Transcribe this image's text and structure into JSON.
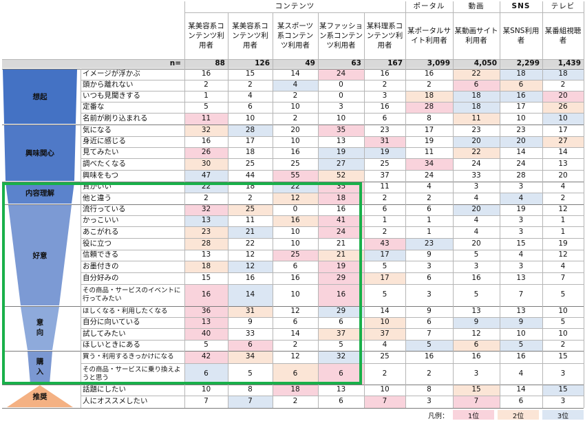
{
  "group_headers": [
    "コンテンツ",
    "ポータル",
    "動画",
    "SNS",
    "テレビ"
  ],
  "columns": [
    "某美容系コンテンツ利用者",
    "某美容系コンテンツ利用者",
    "某スポーツ系コンテンツ利用者",
    "某ファッション系コンテンツ利用者",
    "某料理系コンテンツ利用者",
    "某ポータルサイト利用者",
    "某動画サイト利用者",
    "某SNS利用者",
    "某番組視聴者"
  ],
  "n_label": "n=",
  "n_values": [
    "88",
    "126",
    "49",
    "63",
    "167",
    "3,099",
    "4,050",
    "2,299",
    "1,439"
  ],
  "stages": [
    {
      "name": "想起",
      "color": "#4472c4"
    },
    {
      "name": "興味関心",
      "color": "#4f79c7"
    },
    {
      "name": "内容理解",
      "color": "#5b83cc"
    },
    {
      "name": "好意",
      "color": "#7c9ad4"
    },
    {
      "name": "意向",
      "color": "#8eaadb"
    },
    {
      "name": "購入",
      "color": "#7b98d2"
    },
    {
      "name": "推奨",
      "color": "#f4b183"
    }
  ],
  "rows": [
    {
      "label": "イメージが浮かぶ",
      "values": [
        "16",
        "15",
        "14",
        "24",
        "16",
        "16",
        "22",
        "18",
        "18"
      ],
      "ranks": [
        0,
        0,
        0,
        1,
        0,
        0,
        2,
        3,
        3
      ]
    },
    {
      "label": "頭から離れない",
      "values": [
        "2",
        "2",
        "4",
        "0",
        "2",
        "2",
        "6",
        "6",
        "2"
      ],
      "ranks": [
        0,
        0,
        3,
        0,
        0,
        0,
        1,
        2,
        0
      ]
    },
    {
      "label": "いつも見聞きする",
      "values": [
        "1",
        "4",
        "2",
        "0",
        "3",
        "18",
        "18",
        "16",
        "20"
      ],
      "ranks": [
        0,
        0,
        0,
        0,
        0,
        2,
        3,
        3,
        1
      ]
    },
    {
      "label": "定番な",
      "values": [
        "5",
        "6",
        "10",
        "3",
        "16",
        "28",
        "18",
        "17",
        "26"
      ],
      "ranks": [
        0,
        0,
        0,
        0,
        0,
        1,
        3,
        0,
        2
      ]
    },
    {
      "label": "名前が刷り込まれる",
      "values": [
        "11",
        "10",
        "2",
        "10",
        "6",
        "8",
        "11",
        "10",
        "10"
      ],
      "ranks": [
        1,
        0,
        0,
        0,
        0,
        0,
        2,
        0,
        3
      ]
    },
    {
      "label": "気になる",
      "values": [
        "32",
        "28",
        "20",
        "35",
        "23",
        "17",
        "23",
        "23",
        "17"
      ],
      "ranks": [
        2,
        3,
        0,
        1,
        0,
        0,
        0,
        0,
        0
      ]
    },
    {
      "label": "身近に感じる",
      "values": [
        "16",
        "17",
        "10",
        "13",
        "31",
        "19",
        "20",
        "20",
        "27"
      ],
      "ranks": [
        0,
        0,
        0,
        0,
        1,
        0,
        3,
        3,
        2
      ]
    },
    {
      "label": "見てみたい",
      "values": [
        "26",
        "18",
        "16",
        "19",
        "19",
        "11",
        "22",
        "14",
        "14"
      ],
      "ranks": [
        1,
        0,
        0,
        3,
        3,
        0,
        2,
        0,
        0
      ]
    },
    {
      "label": "調べたくなる",
      "values": [
        "30",
        "25",
        "25",
        "27",
        "25",
        "34",
        "24",
        "24",
        "13"
      ],
      "ranks": [
        2,
        0,
        0,
        3,
        0,
        1,
        0,
        0,
        0
      ]
    },
    {
      "label": "興味をもつ",
      "values": [
        "47",
        "44",
        "55",
        "52",
        "37",
        "24",
        "33",
        "28",
        "20"
      ],
      "ranks": [
        3,
        0,
        1,
        2,
        0,
        0,
        0,
        0,
        0
      ]
    },
    {
      "label": "質がいい",
      "values": [
        "22",
        "18",
        "22",
        "35",
        "11",
        "4",
        "3",
        "3",
        "4"
      ],
      "ranks": [
        3,
        0,
        3,
        1,
        0,
        0,
        0,
        0,
        0
      ]
    },
    {
      "label": "他と違う",
      "values": [
        "2",
        "2",
        "12",
        "18",
        "2",
        "2",
        "4",
        "4",
        "2"
      ],
      "ranks": [
        0,
        0,
        2,
        1,
        0,
        0,
        0,
        3,
        0
      ]
    },
    {
      "label": "流行っている",
      "values": [
        "32",
        "25",
        "0",
        "16",
        "6",
        "6",
        "20",
        "19",
        "12"
      ],
      "ranks": [
        1,
        2,
        0,
        0,
        0,
        0,
        3,
        0,
        0
      ]
    },
    {
      "label": "かっこいい",
      "values": [
        "13",
        "11",
        "16",
        "41",
        "1",
        "1",
        "4",
        "3",
        "1"
      ],
      "ranks": [
        3,
        0,
        2,
        1,
        0,
        0,
        0,
        0,
        0
      ]
    },
    {
      "label": "あこがれる",
      "values": [
        "23",
        "21",
        "10",
        "24",
        "2",
        "1",
        "4",
        "3",
        "1"
      ],
      "ranks": [
        2,
        3,
        0,
        1,
        0,
        0,
        0,
        0,
        0
      ]
    },
    {
      "label": "役に立つ",
      "values": [
        "28",
        "22",
        "10",
        "21",
        "43",
        "23",
        "20",
        "15",
        "19"
      ],
      "ranks": [
        2,
        0,
        0,
        0,
        1,
        3,
        0,
        0,
        0
      ]
    },
    {
      "label": "信頼できる",
      "values": [
        "13",
        "12",
        "25",
        "21",
        "17",
        "9",
        "5",
        "4",
        "12"
      ],
      "ranks": [
        0,
        0,
        1,
        2,
        3,
        0,
        0,
        0,
        0
      ]
    },
    {
      "label": "お墨付きの",
      "values": [
        "18",
        "12",
        "6",
        "19",
        "5",
        "3",
        "3",
        "3",
        "4"
      ],
      "ranks": [
        2,
        3,
        0,
        1,
        0,
        0,
        0,
        0,
        0
      ]
    },
    {
      "label": "自分好みの",
      "values": [
        "15",
        "16",
        "16",
        "29",
        "17",
        "6",
        "16",
        "13",
        "7"
      ],
      "ranks": [
        0,
        0,
        0,
        1,
        2,
        0,
        0,
        0,
        0
      ]
    },
    {
      "label": "その商品・サービスのイベントに行ってみたい",
      "values": [
        "16",
        "14",
        "10",
        "16",
        "5",
        "3",
        "5",
        "7",
        "5"
      ],
      "ranks": [
        1,
        3,
        0,
        1,
        0,
        0,
        0,
        0,
        0
      ]
    },
    {
      "label": "ほしくなる・利用したくなる",
      "values": [
        "36",
        "31",
        "12",
        "29",
        "14",
        "9",
        "13",
        "13",
        "10"
      ],
      "ranks": [
        1,
        2,
        0,
        3,
        0,
        0,
        0,
        0,
        0
      ]
    },
    {
      "label": "自分に向いている",
      "values": [
        "13",
        "9",
        "6",
        "6",
        "10",
        "6",
        "9",
        "9",
        "5"
      ],
      "ranks": [
        1,
        0,
        0,
        0,
        2,
        0,
        3,
        3,
        0
      ]
    },
    {
      "label": "試してみたい",
      "values": [
        "40",
        "33",
        "14",
        "37",
        "37",
        "7",
        "12",
        "10",
        "10"
      ],
      "ranks": [
        1,
        0,
        0,
        2,
        2,
        0,
        0,
        0,
        0
      ]
    },
    {
      "label": "ほしいときにある",
      "values": [
        "5",
        "6",
        "2",
        "5",
        "4",
        "5",
        "6",
        "5",
        "2"
      ],
      "ranks": [
        0,
        1,
        0,
        0,
        0,
        3,
        2,
        3,
        0
      ]
    },
    {
      "label": "買う・利用するきっかけになる",
      "values": [
        "42",
        "34",
        "12",
        "32",
        "25",
        "16",
        "16",
        "16",
        "15"
      ],
      "ranks": [
        1,
        2,
        0,
        3,
        0,
        0,
        0,
        0,
        0
      ]
    },
    {
      "label": "その商品・サービスに乗り換えようと思う",
      "values": [
        "6",
        "5",
        "6",
        "6",
        "2",
        "2",
        "3",
        "4",
        "3"
      ],
      "ranks": [
        3,
        0,
        2,
        1,
        0,
        0,
        0,
        0,
        0
      ]
    },
    {
      "label": "話題にしたい",
      "values": [
        "10",
        "8",
        "18",
        "13",
        "10",
        "8",
        "15",
        "14",
        "15"
      ],
      "ranks": [
        0,
        0,
        1,
        0,
        0,
        0,
        2,
        0,
        3
      ]
    },
    {
      "label": "人にオススメしたい",
      "values": [
        "7",
        "7",
        "2",
        "6",
        "7",
        "3",
        "7",
        "6",
        "3"
      ],
      "ranks": [
        0,
        3,
        0,
        0,
        1,
        0,
        1,
        0,
        0
      ]
    }
  ],
  "legend": {
    "label": "凡例：",
    "items": [
      "1位",
      "2位",
      "3位"
    ]
  }
}
